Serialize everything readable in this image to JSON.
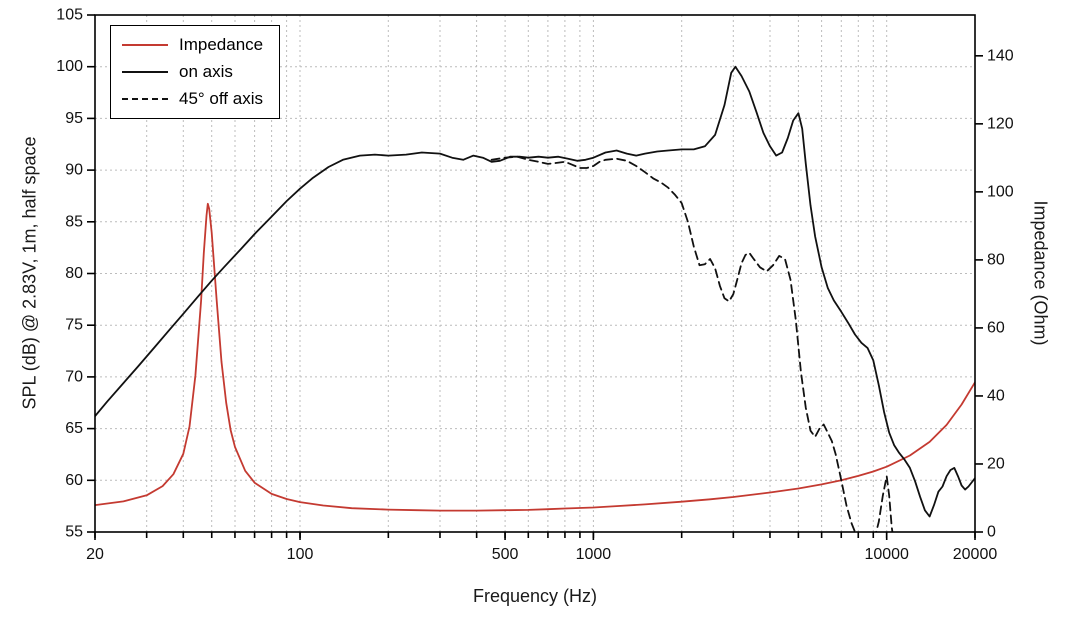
{
  "figure": {
    "background": "#ffffff",
    "frame_color": "#000000",
    "grid_color": "#bcbcbc",
    "accent_red": "#c43a31",
    "line_black": "#111111"
  },
  "chart_data": {
    "type": "line",
    "title": "",
    "x_scale": "log",
    "xlabel": "Frequency (Hz)",
    "xlim": [
      20,
      20000
    ],
    "x_tick_labels": [
      20,
      100,
      500,
      1000,
      10000,
      20000
    ],
    "x_gridlines": [
      20,
      30,
      40,
      50,
      60,
      70,
      80,
      90,
      100,
      200,
      300,
      400,
      500,
      600,
      700,
      800,
      900,
      1000,
      2000,
      3000,
      4000,
      5000,
      6000,
      7000,
      8000,
      9000,
      10000,
      20000
    ],
    "grid": "dashed",
    "legend_position": "top-left",
    "left_axis": {
      "label": "SPL (dB) @ 2.83V, 1m, half space",
      "lim": [
        55,
        105
      ],
      "ticks": [
        55,
        60,
        65,
        70,
        75,
        80,
        85,
        90,
        95,
        100,
        105
      ]
    },
    "right_axis": {
      "label": "Impedance (Ohm)",
      "lim": [
        0,
        152
      ],
      "ticks": [
        0,
        20,
        40,
        60,
        80,
        100,
        120,
        140
      ]
    },
    "series": [
      {
        "name": "Impedance",
        "axis": "right",
        "unit": "Ohm",
        "color": "#c43a31",
        "dash": "solid",
        "points": [
          [
            20,
            7.9
          ],
          [
            25,
            9.0
          ],
          [
            30,
            10.8
          ],
          [
            34,
            13.5
          ],
          [
            37,
            17.0
          ],
          [
            40,
            23.0
          ],
          [
            42,
            31.0
          ],
          [
            44,
            46.0
          ],
          [
            46,
            68.0
          ],
          [
            47,
            82.0
          ],
          [
            48,
            93.0
          ],
          [
            48.5,
            96.5
          ],
          [
            49,
            95.0
          ],
          [
            50,
            88.0
          ],
          [
            52,
            68.0
          ],
          [
            54,
            50.0
          ],
          [
            56,
            38.0
          ],
          [
            58,
            30.0
          ],
          [
            60,
            25.0
          ],
          [
            65,
            18.0
          ],
          [
            70,
            14.5
          ],
          [
            80,
            11.2
          ],
          [
            90,
            9.7
          ],
          [
            100,
            8.8
          ],
          [
            120,
            7.8
          ],
          [
            150,
            7.0
          ],
          [
            200,
            6.6
          ],
          [
            250,
            6.4
          ],
          [
            300,
            6.3
          ],
          [
            400,
            6.3
          ],
          [
            500,
            6.4
          ],
          [
            600,
            6.5
          ],
          [
            700,
            6.7
          ],
          [
            800,
            6.9
          ],
          [
            1000,
            7.2
          ],
          [
            1200,
            7.6
          ],
          [
            1500,
            8.1
          ],
          [
            2000,
            8.9
          ],
          [
            2500,
            9.6
          ],
          [
            3000,
            10.3
          ],
          [
            4000,
            11.6
          ],
          [
            5000,
            12.8
          ],
          [
            6000,
            14.0
          ],
          [
            7000,
            15.2
          ],
          [
            8000,
            16.5
          ],
          [
            9000,
            17.8
          ],
          [
            10000,
            19.2
          ],
          [
            12000,
            22.5
          ],
          [
            14000,
            26.5
          ],
          [
            16000,
            31.5
          ],
          [
            18000,
            37.5
          ],
          [
            20000,
            44.0
          ]
        ]
      },
      {
        "name": "on axis",
        "axis": "left",
        "unit": "dB",
        "color": "#111111",
        "dash": "solid",
        "points": [
          [
            20,
            66.2
          ],
          [
            22,
            67.6
          ],
          [
            25,
            69.4
          ],
          [
            28,
            71.0
          ],
          [
            32,
            72.9
          ],
          [
            36,
            74.6
          ],
          [
            40,
            76.1
          ],
          [
            45,
            77.8
          ],
          [
            50,
            79.3
          ],
          [
            55,
            80.6
          ],
          [
            63,
            82.4
          ],
          [
            71,
            84.0
          ],
          [
            80,
            85.5
          ],
          [
            90,
            87.0
          ],
          [
            100,
            88.2
          ],
          [
            110,
            89.2
          ],
          [
            125,
            90.3
          ],
          [
            140,
            91.0
          ],
          [
            160,
            91.4
          ],
          [
            180,
            91.5
          ],
          [
            200,
            91.4
          ],
          [
            230,
            91.5
          ],
          [
            260,
            91.7
          ],
          [
            300,
            91.6
          ],
          [
            330,
            91.2
          ],
          [
            360,
            91.0
          ],
          [
            390,
            91.4
          ],
          [
            420,
            91.2
          ],
          [
            450,
            90.8
          ],
          [
            480,
            90.9
          ],
          [
            520,
            91.3
          ],
          [
            560,
            91.3
          ],
          [
            600,
            91.2
          ],
          [
            650,
            91.3
          ],
          [
            700,
            91.2
          ],
          [
            760,
            91.3
          ],
          [
            820,
            91.1
          ],
          [
            880,
            90.9
          ],
          [
            940,
            91.0
          ],
          [
            1000,
            91.2
          ],
          [
            1100,
            91.7
          ],
          [
            1200,
            91.9
          ],
          [
            1300,
            91.6
          ],
          [
            1400,
            91.4
          ],
          [
            1500,
            91.6
          ],
          [
            1650,
            91.8
          ],
          [
            1800,
            91.9
          ],
          [
            2000,
            92.0
          ],
          [
            2200,
            92.0
          ],
          [
            2400,
            92.3
          ],
          [
            2600,
            93.4
          ],
          [
            2800,
            96.3
          ],
          [
            2950,
            99.4
          ],
          [
            3050,
            100.0
          ],
          [
            3200,
            99.1
          ],
          [
            3400,
            97.6
          ],
          [
            3600,
            95.6
          ],
          [
            3800,
            93.6
          ],
          [
            4000,
            92.3
          ],
          [
            4200,
            91.4
          ],
          [
            4400,
            91.7
          ],
          [
            4600,
            93.1
          ],
          [
            4800,
            94.8
          ],
          [
            5000,
            95.5
          ],
          [
            5150,
            94.0
          ],
          [
            5300,
            90.6
          ],
          [
            5500,
            86.6
          ],
          [
            5700,
            83.6
          ],
          [
            6000,
            80.6
          ],
          [
            6300,
            78.6
          ],
          [
            6600,
            77.4
          ],
          [
            7000,
            76.3
          ],
          [
            7400,
            75.2
          ],
          [
            7800,
            74.1
          ],
          [
            8200,
            73.3
          ],
          [
            8600,
            72.8
          ],
          [
            9000,
            71.6
          ],
          [
            9400,
            69.2
          ],
          [
            9800,
            66.6
          ],
          [
            10200,
            64.6
          ],
          [
            10600,
            63.4
          ],
          [
            11000,
            62.7
          ],
          [
            11500,
            62.0
          ],
          [
            12000,
            61.2
          ],
          [
            12500,
            59.9
          ],
          [
            13000,
            58.4
          ],
          [
            13500,
            57.1
          ],
          [
            14000,
            56.5
          ],
          [
            14500,
            57.6
          ],
          [
            15000,
            58.9
          ],
          [
            15500,
            59.4
          ],
          [
            16000,
            60.4
          ],
          [
            16500,
            61.0
          ],
          [
            17000,
            61.2
          ],
          [
            17500,
            60.4
          ],
          [
            18000,
            59.5
          ],
          [
            18500,
            59.1
          ],
          [
            19000,
            59.4
          ],
          [
            20000,
            60.2
          ]
        ]
      },
      {
        "name": "45° off axis",
        "axis": "left",
        "unit": "dB",
        "color": "#111111",
        "dash": "dashed",
        "points": [
          [
            450,
            91.0
          ],
          [
            500,
            91.2
          ],
          [
            550,
            91.3
          ],
          [
            600,
            91.0
          ],
          [
            650,
            90.8
          ],
          [
            700,
            90.6
          ],
          [
            750,
            90.7
          ],
          [
            800,
            90.8
          ],
          [
            850,
            90.5
          ],
          [
            900,
            90.2
          ],
          [
            950,
            90.2
          ],
          [
            1000,
            90.4
          ],
          [
            1050,
            90.8
          ],
          [
            1100,
            91.0
          ],
          [
            1200,
            91.1
          ],
          [
            1300,
            90.9
          ],
          [
            1400,
            90.4
          ],
          [
            1500,
            89.8
          ],
          [
            1600,
            89.2
          ],
          [
            1700,
            88.8
          ],
          [
            1800,
            88.3
          ],
          [
            1900,
            87.6
          ],
          [
            2000,
            86.8
          ],
          [
            2100,
            85.0
          ],
          [
            2200,
            82.6
          ],
          [
            2300,
            80.8
          ],
          [
            2400,
            80.9
          ],
          [
            2500,
            81.4
          ],
          [
            2600,
            80.5
          ],
          [
            2700,
            78.8
          ],
          [
            2800,
            77.6
          ],
          [
            2900,
            77.3
          ],
          [
            3000,
            78.0
          ],
          [
            3100,
            79.5
          ],
          [
            3200,
            81.0
          ],
          [
            3300,
            81.8
          ],
          [
            3400,
            82.0
          ],
          [
            3500,
            81.5
          ],
          [
            3700,
            80.6
          ],
          [
            3900,
            80.2
          ],
          [
            4100,
            80.8
          ],
          [
            4300,
            81.7
          ],
          [
            4500,
            81.4
          ],
          [
            4700,
            79.4
          ],
          [
            4900,
            75.5
          ],
          [
            5100,
            70.5
          ],
          [
            5300,
            67.0
          ],
          [
            5500,
            64.8
          ],
          [
            5700,
            64.2
          ],
          [
            5900,
            65.0
          ],
          [
            6100,
            65.4
          ],
          [
            6300,
            64.6
          ],
          [
            6500,
            63.8
          ],
          [
            6700,
            62.5
          ],
          [
            7000,
            60.0
          ],
          [
            7300,
            57.5
          ],
          [
            7600,
            55.8
          ],
          [
            7900,
            54.6
          ],
          [
            8200,
            53.6
          ],
          [
            8500,
            52.8
          ],
          [
            8800,
            53.5
          ],
          [
            9100,
            54.4
          ],
          [
            9400,
            56.0
          ],
          [
            9700,
            58.5
          ],
          [
            10000,
            60.4
          ],
          [
            10200,
            58.5
          ],
          [
            10400,
            55.5
          ],
          [
            10700,
            53.0
          ],
          [
            11000,
            51.5
          ]
        ]
      }
    ]
  }
}
